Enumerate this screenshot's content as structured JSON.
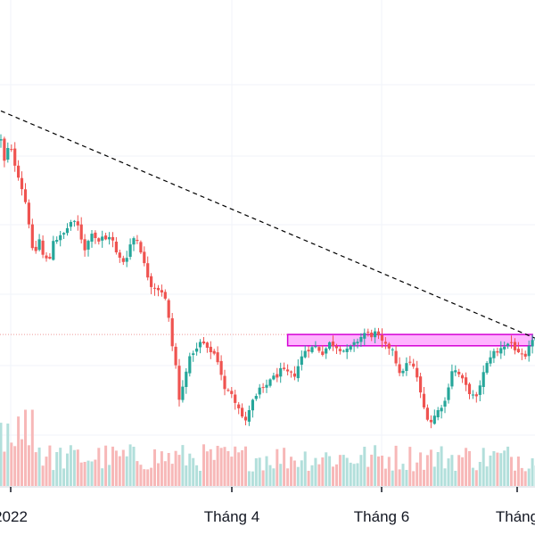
{
  "chart_data": {
    "type": "candlestick",
    "x_tick_labels": [
      "2022",
      "Tháng 4",
      "Tháng 6",
      "Tháng"
    ],
    "colors": {
      "up": "#26a69a",
      "down": "#ef5350",
      "volume_up": "#b2dfdb",
      "volume_down": "#f7b8b8",
      "grid": "#f0f3fa",
      "trendline": "#000000",
      "zone_fill": "#ff77ff",
      "zone_border": "#d500d5",
      "level_line": "#ef9a9a",
      "axis_line": "#d1d4dc",
      "text": "#131722"
    },
    "ylim": [
      0,
      600
    ],
    "volume_lim": [
      0,
      100
    ],
    "trendline": {
      "style": "dashed",
      "from": {
        "candle": 0,
        "price": 463
      },
      "to": {
        "candle": 153,
        "price": 182
      }
    },
    "zone": {
      "from_candle": 82,
      "to_candle": 152,
      "top": 187,
      "bottom": 173
    },
    "level_line": {
      "price": 187,
      "style": "dotted"
    },
    "candles": [],
    "volume": []
  }
}
